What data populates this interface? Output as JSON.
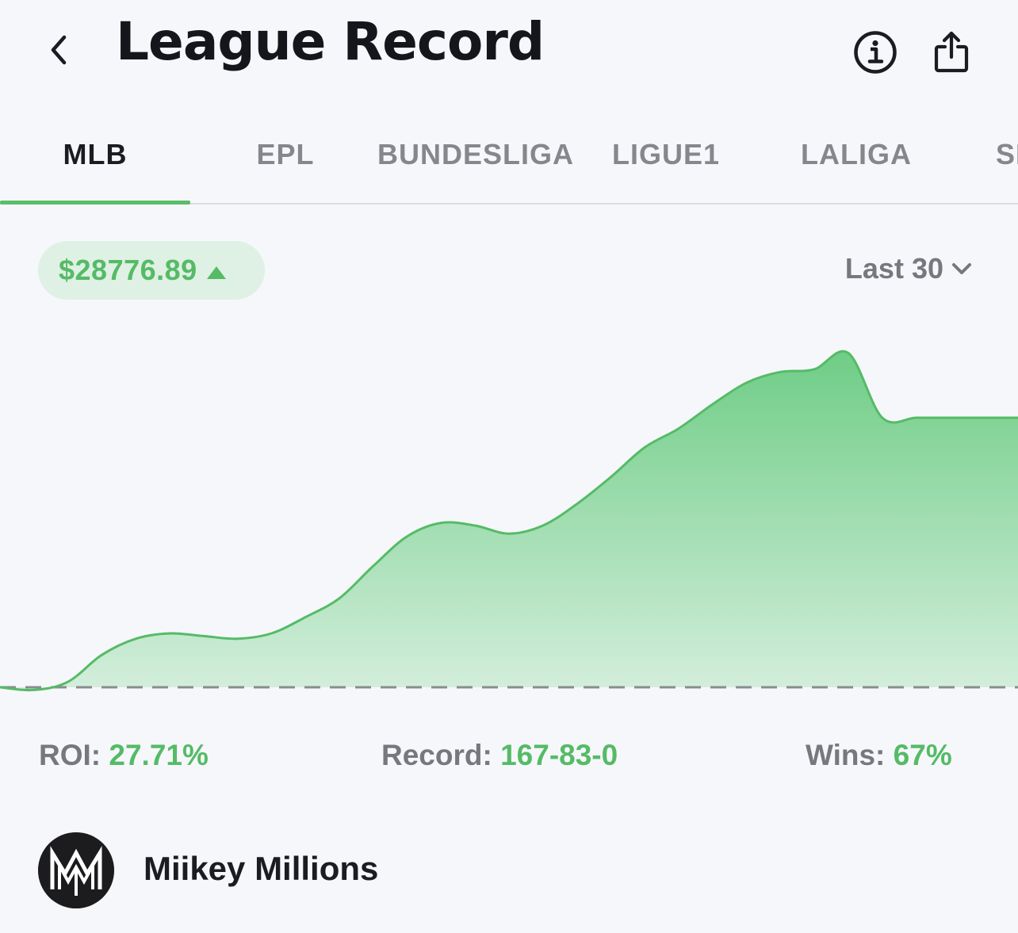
{
  "header": {
    "title": "League Record",
    "back_icon": "chevron-left-icon",
    "info_icon": "info-icon",
    "share_icon": "share-icon"
  },
  "tabs": [
    {
      "label": "MLB",
      "active": true
    },
    {
      "label": "EPL",
      "active": false
    },
    {
      "label": "BUNDESLIGA",
      "active": false
    },
    {
      "label": "LIGUE1",
      "active": false
    },
    {
      "label": "LALIGA",
      "active": false
    },
    {
      "label": "SE",
      "active": false
    }
  ],
  "summary": {
    "balance": "$28776.89",
    "trend": "up",
    "range_label": "Last 30"
  },
  "stats": {
    "roi_label": "ROI:",
    "roi_value": "27.71%",
    "record_label": "Record:",
    "record_value": "167-83-0",
    "wins_label": "Wins:",
    "wins_value": "67%"
  },
  "user": {
    "name": "Miikey Millions",
    "avatar_logo_text": "MM"
  },
  "colors": {
    "accent": "#55bb66",
    "baseline": "#8a8c90",
    "text_dark": "#1b1c22",
    "text_muted": "#76787d"
  },
  "chart_data": {
    "type": "area",
    "title": "",
    "xlabel": "",
    "ylabel": "",
    "baseline": 0,
    "x": [
      0,
      1,
      2,
      3,
      4,
      5,
      6,
      7,
      8,
      9,
      10,
      11,
      12,
      13,
      14,
      15,
      16,
      17,
      18,
      19,
      20,
      21,
      22,
      23,
      24,
      25,
      26,
      27,
      28,
      29,
      30
    ],
    "values": [
      0,
      -1,
      2,
      12,
      18,
      20,
      19,
      18,
      20,
      26,
      33,
      45,
      56,
      61,
      60,
      57,
      60,
      68,
      78,
      89,
      96,
      105,
      113,
      117,
      118,
      124,
      100,
      100,
      100,
      100,
      100
    ]
  }
}
